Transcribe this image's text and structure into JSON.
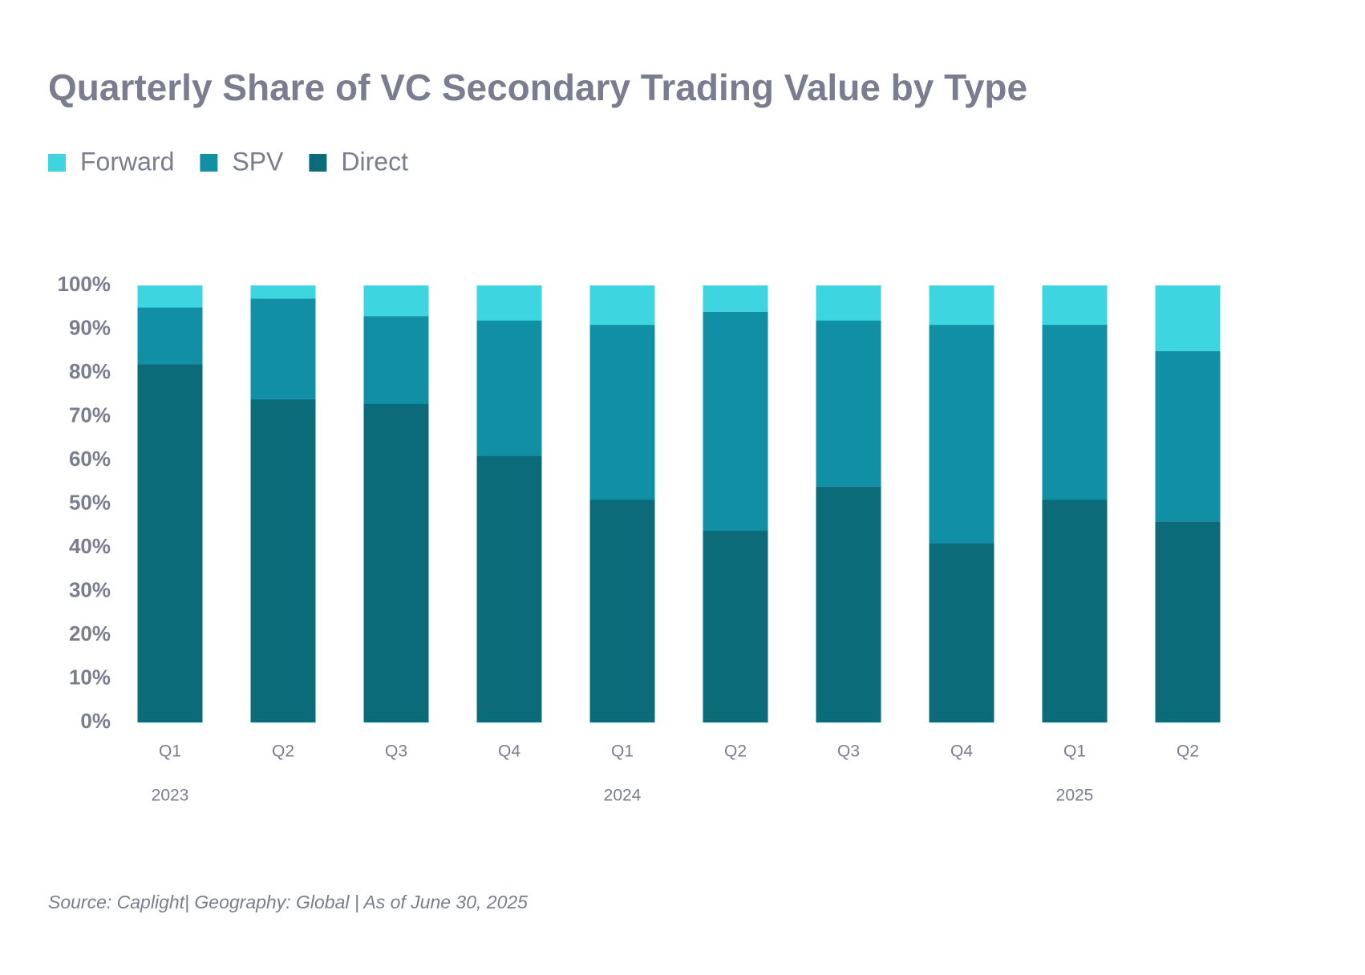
{
  "chart_data": {
    "type": "stacked_bar",
    "title": "Quarterly Share of VC Secondary Trading Value by Type",
    "categories": [
      "Q1",
      "Q2",
      "Q3",
      "Q4",
      "Q1",
      "Q2",
      "Q3",
      "Q4",
      "Q1",
      "Q2"
    ],
    "year_labels": [
      "2023",
      null,
      null,
      null,
      "2024",
      null,
      null,
      null,
      "2025",
      null
    ],
    "series": [
      {
        "name": "Forward",
        "color": "#3dd6e0",
        "values": [
          5,
          3,
          7,
          8,
          9,
          6,
          8,
          9,
          9,
          15
        ]
      },
      {
        "name": "SPV",
        "color": "#1190a5",
        "values": [
          13,
          23,
          20,
          31,
          40,
          50,
          38,
          50,
          40,
          39
        ]
      },
      {
        "name": "Direct",
        "color": "#0b6b78",
        "values": [
          82,
          74,
          73,
          61,
          51,
          44,
          54,
          41,
          51,
          46
        ]
      }
    ],
    "ylim": [
      0,
      100
    ],
    "yticks": [
      {
        "value": 0,
        "label": "0%"
      },
      {
        "value": 10,
        "label": "10%"
      },
      {
        "value": 20,
        "label": "20%"
      },
      {
        "value": 30,
        "label": "30%"
      },
      {
        "value": 40,
        "label": "40%"
      },
      {
        "value": 50,
        "label": "50%"
      },
      {
        "value": 60,
        "label": "60%"
      },
      {
        "value": 70,
        "label": "70%"
      },
      {
        "value": 80,
        "label": "80%"
      },
      {
        "value": 90,
        "label": "90%"
      },
      {
        "value": 100,
        "label": "100%"
      }
    ],
    "grid": false,
    "source": "Source: Caplight| Geography: Global | As of June 30, 2025"
  }
}
